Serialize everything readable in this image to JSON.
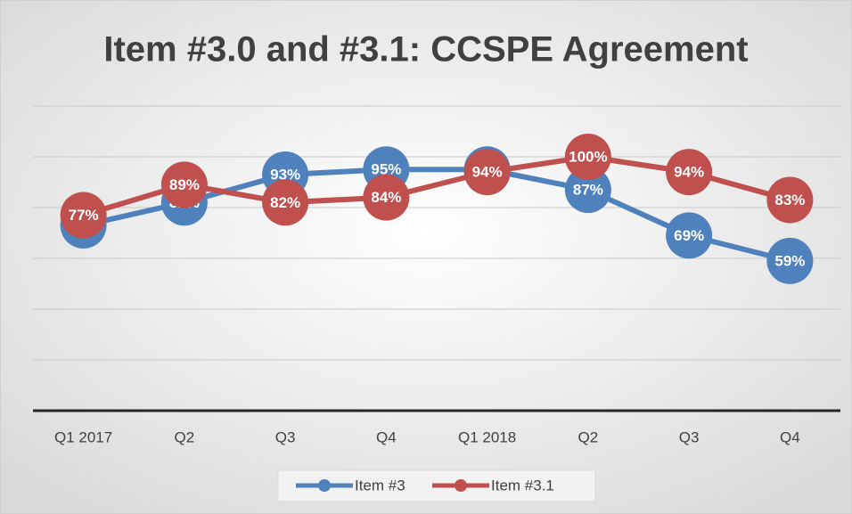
{
  "chart_data": {
    "type": "line",
    "title": "Item #3.0 and #3.1: CCSPE Agreement",
    "categories": [
      "Q1 2017",
      "Q2",
      "Q3",
      "Q4",
      "Q1 2018",
      "Q2",
      "Q3",
      "Q4"
    ],
    "series": [
      {
        "name": "Item #3",
        "color": "#4f81bd",
        "values": [
          73,
          82,
          93,
          95,
          95,
          87,
          69,
          59
        ],
        "value_labels": [
          "73%",
          "82%",
          "93%",
          "95%",
          "95%",
          "87%",
          "69%",
          "59%"
        ]
      },
      {
        "name": "Item #3.1",
        "color": "#c0504d",
        "values": [
          77,
          89,
          82,
          84,
          94,
          100,
          94,
          83
        ],
        "value_labels": [
          "77%",
          "89%",
          "82%",
          "84%",
          "94%",
          "100%",
          "94%",
          "83%"
        ]
      }
    ],
    "ylim": [
      0,
      120
    ],
    "yticks": [
      0,
      20,
      40,
      60,
      80,
      100,
      120
    ],
    "grid": true,
    "legend": "bottom"
  }
}
